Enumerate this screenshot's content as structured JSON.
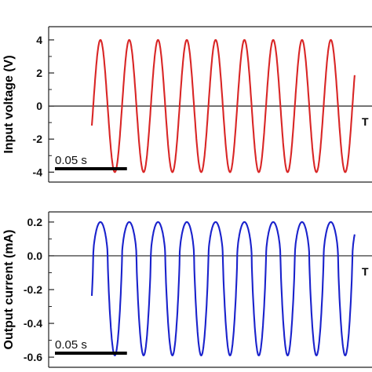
{
  "chart_data": [
    {
      "type": "line",
      "ylabel": "Input voltage (V)",
      "yticks": [
        4,
        2,
        0,
        -2,
        -4
      ],
      "ytick_labels": [
        "4",
        "2",
        "0",
        "-2",
        "-4"
      ],
      "ylim": [
        -4.6,
        4.8
      ],
      "xlim": [
        -0.03,
        0.2
      ],
      "scale_bar": "0.05 s",
      "scale_bar_len": 0.05,
      "side_label": "T",
      "series": [
        {
          "color": "#d92626",
          "waveform": "sine",
          "amplitude": 4,
          "frequency_hz": 50,
          "t_start": 0,
          "t_end": 0.1825,
          "start_value": -1.1,
          "end_value": -1.9,
          "cycles": 10
        }
      ]
    },
    {
      "type": "line",
      "ylabel": "Output current (mA)",
      "yticks": [
        0.2,
        0.0,
        -0.2,
        -0.4,
        -0.6
      ],
      "ytick_labels": [
        "0.2",
        "0.0",
        "-0.2",
        "-0.4",
        "-0.6"
      ],
      "ylim": [
        -0.66,
        0.26
      ],
      "xlim": [
        -0.03,
        0.2
      ],
      "scale_bar": "0.05 s",
      "scale_bar_len": 0.05,
      "side_label": "T",
      "series": [
        {
          "color": "#1a22cc",
          "waveform": "rectified-sine",
          "max": 0.2,
          "min": -0.59,
          "frequency_hz": 50,
          "t_start": 0,
          "t_end": 0.1825,
          "start_value": -0.15,
          "end_value": -0.32,
          "cycles": 10
        }
      ]
    }
  ]
}
